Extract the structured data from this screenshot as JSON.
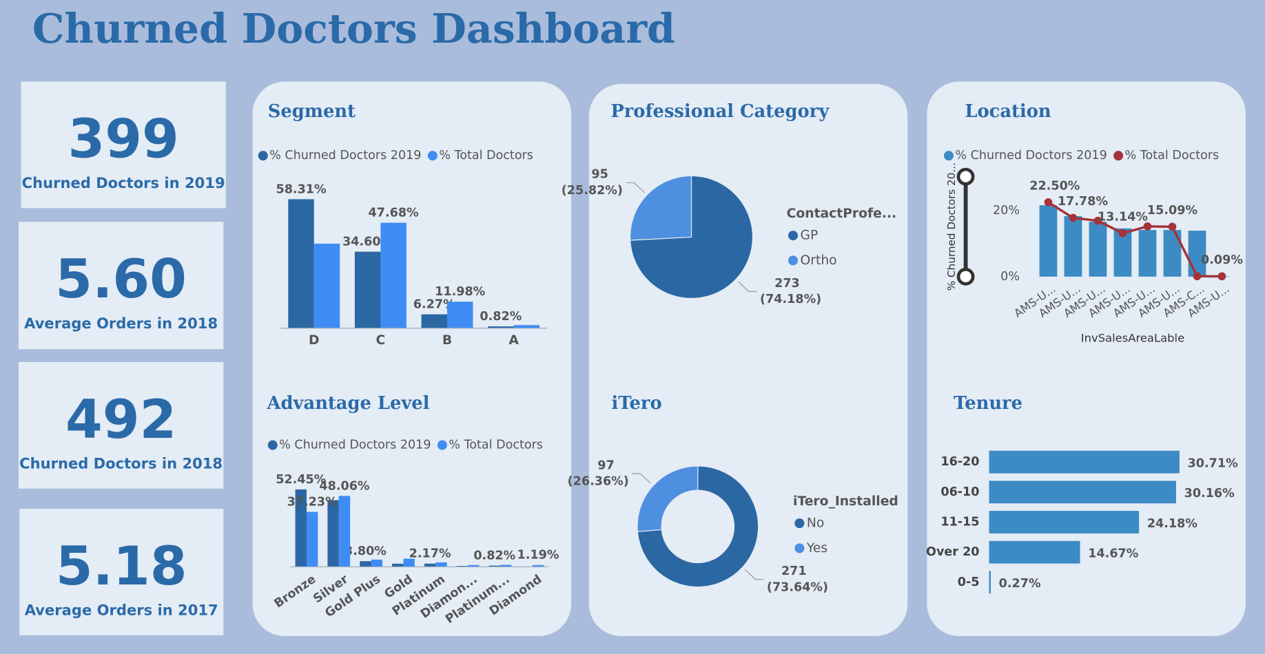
{
  "title": "Churned Doctors Dashboard",
  "kpis": [
    {
      "value": "399",
      "label": "Churned Doctors in 2019"
    },
    {
      "value": "5.60",
      "label": "Average Orders in 2018"
    },
    {
      "value": "492",
      "label": "Churned Doctors in 2018"
    },
    {
      "value": "5.18",
      "label": "Average Orders in 2017"
    }
  ],
  "chart_data": [
    {
      "type": "bar",
      "title": "Segment",
      "categories": [
        "D",
        "C",
        "B",
        "A"
      ],
      "series": [
        {
          "name": "% Churned Doctors 2019",
          "color": "#2b67a3",
          "values": [
            58.31,
            34.6,
            6.27,
            0.82
          ],
          "value_labels": [
            "58.31%",
            "34.60%",
            "6.27%",
            "0.82%"
          ]
        },
        {
          "name": "% Total Doctors",
          "color": "#3f8cf5",
          "values": [
            38.2,
            47.68,
            11.98,
            1.4
          ],
          "value_labels": [
            null,
            "47.68%",
            "11.98%",
            null
          ]
        }
      ]
    },
    {
      "type": "pie",
      "title": "Professional Category",
      "legend_title": "ContactProfe...",
      "categories": [
        "GP",
        "Ortho"
      ],
      "colors": [
        "#2b67a3",
        "#4f8fe0"
      ],
      "values": [
        273,
        95
      ],
      "percents": [
        74.18,
        25.82
      ],
      "percent_labels": [
        "(74.18%)",
        "(25.82%)"
      ]
    },
    {
      "type": "combo",
      "title": "Location",
      "categories": [
        "AMS-U...",
        "AMS-U...",
        "AMS-U...",
        "AMS-U...",
        "AMS-U...",
        "AMS-U...",
        "AMS-C...",
        "AMS-U..."
      ],
      "xlabel": "InvSalesAreaLable",
      "ylabel": "% Churned Doctors 20...",
      "ylim": [
        0,
        30
      ],
      "yticks": [
        {
          "value": 0,
          "label": "0%"
        },
        {
          "value": 20,
          "label": "20%"
        }
      ],
      "series": [
        {
          "name": "% Churned Doctors 2019",
          "color": "#3c8bc4",
          "kind": "bar",
          "values": [
            21.6,
            18.3,
            16.6,
            14.6,
            14.1,
            14.1,
            13.9,
            0.1
          ]
        },
        {
          "name": "% Total Doctors",
          "color": "#a4343a",
          "kind": "line",
          "values": [
            22.5,
            17.78,
            16.9,
            13.14,
            15.2,
            15.09,
            0.12,
            0.09
          ],
          "value_labels": [
            "22.50%",
            "17.78%",
            null,
            "13.14%",
            null,
            "15.09%",
            null,
            "0.09%"
          ]
        }
      ]
    },
    {
      "type": "bar",
      "title": "Advantage Level",
      "categories": [
        "Bronze",
        "Silver",
        "Gold Plus",
        "Gold",
        "Platinum",
        "Diamon...",
        "Platinum...",
        "Diamond"
      ],
      "series": [
        {
          "name": "% Churned Doctors 2019",
          "color": "#2b67a3",
          "values": [
            52.45,
            45.2,
            3.8,
            2.1,
            2.17,
            0.6,
            0.82,
            0.1
          ],
          "value_labels": [
            "52.45%",
            null,
            "3.80%",
            null,
            "2.17%",
            null,
            "0.82%",
            null
          ]
        },
        {
          "name": "% Total Doctors",
          "color": "#3f8cf5",
          "values": [
            37.23,
            48.06,
            4.9,
            5.5,
            3.0,
            1.2,
            1.3,
            1.19
          ],
          "value_labels": [
            "37.23%",
            "48.06%",
            null,
            null,
            null,
            null,
            null,
            "1.19%"
          ]
        }
      ]
    },
    {
      "type": "donut",
      "title": "iTero",
      "legend_title": "iTero_Installed",
      "categories": [
        "No",
        "Yes"
      ],
      "colors": [
        "#2b67a3",
        "#4f8fe0"
      ],
      "values": [
        271,
        97
      ],
      "percents": [
        73.64,
        26.36
      ],
      "percent_labels": [
        "(73.64%)",
        "(26.36%)"
      ]
    },
    {
      "type": "hbar",
      "title": "Tenure",
      "categories": [
        "16-20",
        "06-10",
        "11-15",
        "Over 20",
        "0-5"
      ],
      "color": "#3c8bc4",
      "values": [
        30.71,
        30.16,
        24.18,
        14.67,
        0.27
      ],
      "value_labels": [
        "30.71%",
        "30.16%",
        "24.18%",
        "14.67%",
        "0.27%"
      ]
    }
  ]
}
